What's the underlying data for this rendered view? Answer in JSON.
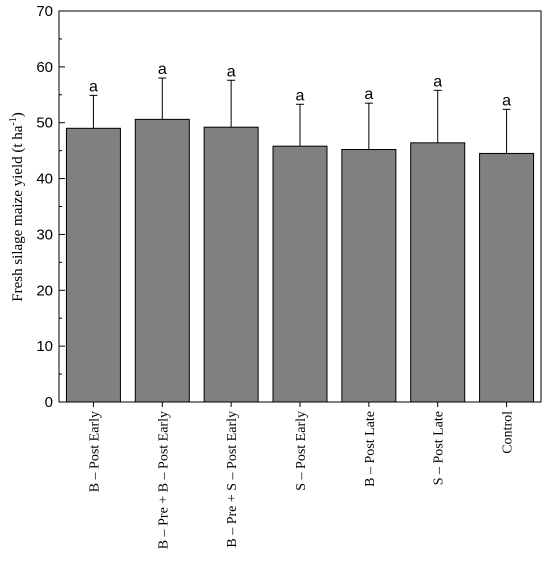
{
  "chart_data": {
    "type": "bar",
    "title": "",
    "xlabel": "",
    "ylabel": "Fresh silage maize yield (t ha",
    "ylabel_sup": "-1",
    "ylabel_close": ")",
    "ylim": [
      0,
      70
    ],
    "yticks": [
      0,
      10,
      20,
      30,
      40,
      50,
      60,
      70
    ],
    "grid": false,
    "bar_color": "#808080",
    "categories": [
      "B – Post Early",
      "B – Pre + B – Post Early",
      "B – Pre + S – Post Early",
      "S – Post Early",
      "B – Post Late",
      "S – Post Late",
      "Control"
    ],
    "values": [
      49.0,
      50.6,
      49.2,
      45.8,
      45.2,
      46.4,
      44.5
    ],
    "errors": [
      5.9,
      7.4,
      8.4,
      7.5,
      8.3,
      9.4,
      7.9
    ],
    "significance": [
      "a",
      "a",
      "a",
      "a",
      "a",
      "a",
      "a"
    ]
  }
}
